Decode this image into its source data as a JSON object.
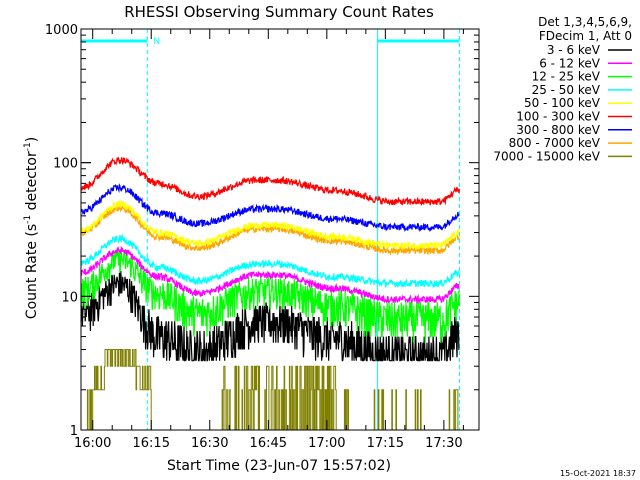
{
  "chart_data": {
    "type": "line",
    "title": "RHESSI Observing Summary Count Rates",
    "xlabel": "Start Time (23-Jun-07 15:57:02)",
    "ylabel_main": "Count Rate (s",
    "ylabel_sup1": "-1",
    "ylabel_mid": " detector",
    "ylabel_sup2": "-1",
    "ylabel_end": ")",
    "y_scale": "log",
    "ylim": [
      1,
      1000
    ],
    "xlim_min": [
      0,
      102
    ],
    "x_ticks": [
      {
        "m": 3,
        "label": "16:00"
      },
      {
        "m": 18,
        "label": "16:15"
      },
      {
        "m": 33,
        "label": "16:30"
      },
      {
        "m": 48,
        "label": "16:45"
      },
      {
        "m": 63,
        "label": "17:00"
      },
      {
        "m": 78,
        "label": "17:15"
      },
      {
        "m": 93,
        "label": "17:30"
      }
    ],
    "y_ticks": [
      {
        "v": 1,
        "label": "1"
      },
      {
        "v": 10,
        "label": "10"
      },
      {
        "v": 100,
        "label": "100"
      },
      {
        "v": 1000,
        "label": "1000"
      }
    ],
    "legend_header": [
      "Det 1,3,4,5,6,9,",
      "FDecim 1, Att 0"
    ],
    "series": [
      {
        "name": "3 - 6 keV",
        "color": "#000000",
        "ctrl": [
          [
            0,
            7.5
          ],
          [
            10,
            12.5
          ],
          [
            20,
            5
          ],
          [
            30,
            3.8
          ],
          [
            45,
            6.5
          ],
          [
            50,
            6.5
          ],
          [
            65,
            4.8
          ],
          [
            80,
            3.5
          ],
          [
            92,
            3.5
          ],
          [
            97,
            5.5
          ]
        ]
      },
      {
        "name": "6 - 12 keV",
        "color": "#ff00ff",
        "ctrl": [
          [
            0,
            15
          ],
          [
            10,
            22
          ],
          [
            20,
            14
          ],
          [
            30,
            10.5
          ],
          [
            45,
            14.5
          ],
          [
            50,
            14.5
          ],
          [
            65,
            11.5
          ],
          [
            80,
            9.5
          ],
          [
            92,
            9.5
          ],
          [
            97,
            12
          ]
        ]
      },
      {
        "name": "12 - 25 keV",
        "color": "#00ff00",
        "ctrl": [
          [
            0,
            11
          ],
          [
            10,
            19
          ],
          [
            20,
            10.5
          ],
          [
            30,
            7.5
          ],
          [
            45,
            11
          ],
          [
            50,
            11
          ],
          [
            65,
            8.5
          ],
          [
            80,
            6.8
          ],
          [
            92,
            6.8
          ],
          [
            97,
            9
          ]
        ]
      },
      {
        "name": "25 - 50 keV",
        "color": "#00ffff",
        "ctrl": [
          [
            0,
            18
          ],
          [
            10,
            27
          ],
          [
            20,
            16.5
          ],
          [
            30,
            13
          ],
          [
            45,
            17.5
          ],
          [
            50,
            17.5
          ],
          [
            65,
            14
          ],
          [
            80,
            12.5
          ],
          [
            92,
            12.5
          ],
          [
            97,
            15
          ]
        ]
      },
      {
        "name": "50 - 100 keV",
        "color": "#ffff00",
        "ctrl": [
          [
            0,
            31
          ],
          [
            10,
            49
          ],
          [
            20,
            30
          ],
          [
            30,
            25
          ],
          [
            45,
            34
          ],
          [
            50,
            34
          ],
          [
            65,
            28
          ],
          [
            80,
            24
          ],
          [
            92,
            24
          ],
          [
            97,
            30
          ]
        ]
      },
      {
        "name": "100 - 300 keV",
        "color": "#ff0000",
        "ctrl": [
          [
            0,
            65
          ],
          [
            10,
            105
          ],
          [
            20,
            70
          ],
          [
            30,
            56
          ],
          [
            45,
            74
          ],
          [
            50,
            74
          ],
          [
            65,
            62
          ],
          [
            80,
            51
          ],
          [
            92,
            51
          ],
          [
            97,
            63
          ]
        ]
      },
      {
        "name": "300 - 800 keV",
        "color": "#0000ff",
        "ctrl": [
          [
            0,
            43
          ],
          [
            10,
            65
          ],
          [
            20,
            42
          ],
          [
            30,
            35
          ],
          [
            45,
            45
          ],
          [
            50,
            45
          ],
          [
            65,
            38
          ],
          [
            80,
            33
          ],
          [
            92,
            33
          ],
          [
            97,
            41
          ]
        ]
      },
      {
        "name": "800 - 7000 keV",
        "color": "#ffa500",
        "ctrl": [
          [
            0,
            30
          ],
          [
            10,
            46
          ],
          [
            20,
            28
          ],
          [
            30,
            23
          ],
          [
            45,
            32
          ],
          [
            50,
            32
          ],
          [
            65,
            26
          ],
          [
            80,
            22
          ],
          [
            92,
            22
          ],
          [
            97,
            28
          ]
        ]
      },
      {
        "name": "7000 - 15000 keV",
        "color": "#808000",
        "ctrl": []
      }
    ],
    "attenuator_bars": [
      {
        "start": 0,
        "end": 17
      },
      {
        "start": 76,
        "end": 97
      }
    ],
    "vertical_lines_min": [
      17,
      76,
      97
    ],
    "flag_label": "N",
    "bar_color": "#00ffff"
  },
  "timestamp": "15-Oct-2021 18:37"
}
